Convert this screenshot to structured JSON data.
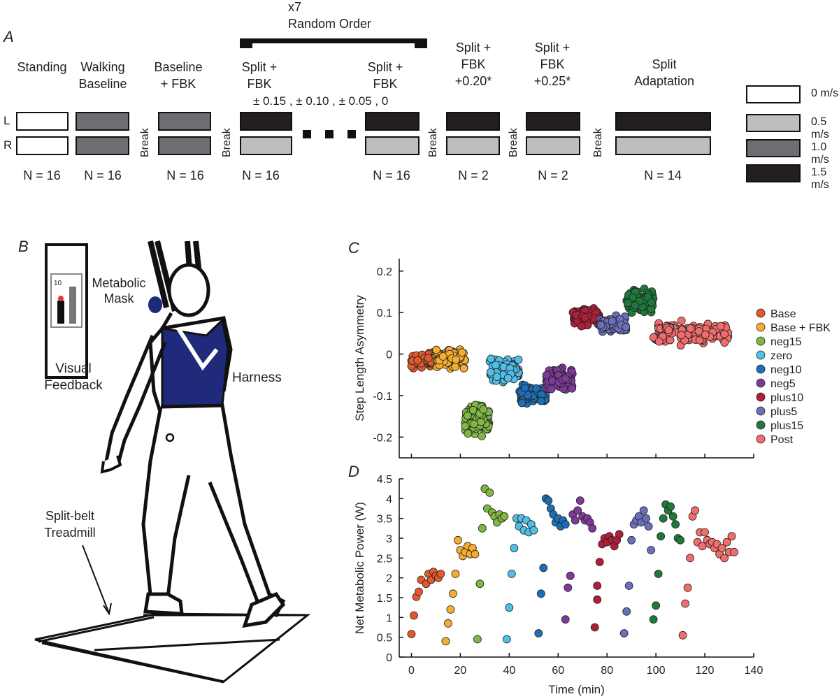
{
  "panel_a": {
    "letter": "A",
    "bracket": {
      "line1": "x7",
      "line2": "Random Order"
    },
    "columns": [
      {
        "label": "Standing",
        "n": "N = 16",
        "left": "0 m/s",
        "right": "0 m/s"
      },
      {
        "label": "Walking\nBaseline",
        "n": "N = 16",
        "left": "1.0 m/s",
        "right": "1.0 m/s"
      },
      {
        "label": "Baseline\n+ FBK",
        "n": "N = 16",
        "left": "1.0 m/s",
        "right": "1.0 m/s"
      },
      {
        "label": "Split +\nFBK",
        "n": "N = 16",
        "left": "1.5 m/s",
        "right": "0.5 m/s"
      },
      {
        "label": "Split +\nFBK",
        "n": "N = 16",
        "left": "1.5 m/s",
        "right": "0.5 m/s"
      },
      {
        "label": "Split +\nFBK\n+0.20*",
        "n": "N = 2",
        "left": "1.5 m/s",
        "right": "0.5 m/s"
      },
      {
        "label": "Split +\nFBK\n+0.25*",
        "n": "N = 2",
        "left": "1.5 m/s",
        "right": "0.5 m/s"
      },
      {
        "label": "Split\nAdaptation",
        "n": "N = 14",
        "left": "1.5 m/s",
        "right": "0.5 m/s"
      }
    ],
    "split_targets": "± 0.15 , ± 0.10 , ± 0.05 , 0",
    "break_label": "Break",
    "row_left": "L",
    "row_right": "R",
    "legend": [
      {
        "label": "0 m/s",
        "color": "#ffffff"
      },
      {
        "label": "0.5 m/s",
        "color": "#bcbec0"
      },
      {
        "label": "1.0 m/s",
        "color": "#6d6e71"
      },
      {
        "label": "1.5 m/s",
        "color": "#231f20"
      }
    ]
  },
  "panel_b": {
    "letter": "B",
    "labels": {
      "feedback_value": "10",
      "mask": "Metabolic\nMask",
      "visual": "Visual\nFeedback",
      "harness": "Harness",
      "treadmill": "Split-belt\nTreadmill"
    }
  },
  "chart_data": [
    {
      "panel": "C",
      "type": "scatter",
      "ylabel": "Step Length Asymmetry",
      "xlabel": "",
      "ylim": [
        -0.25,
        0.23
      ],
      "xlim": [
        -5,
        140
      ],
      "yticks": [
        -0.2,
        -0.1,
        0,
        0.1,
        0.2
      ],
      "ytick_labels": [
        "-0.2",
        "-0.1",
        "0",
        "0.1",
        "0.2"
      ],
      "legend_position": "right",
      "series": [
        {
          "name": "Base",
          "color": "#e25a2c",
          "x_range": [
            0,
            10
          ],
          "y_mean": -0.015,
          "y_spread": 0.022,
          "n": 90
        },
        {
          "name": "Base + FBK",
          "color": "#f4ad2f",
          "x_range": [
            10,
            22
          ],
          "y_mean": -0.01,
          "y_spread": 0.03,
          "n": 90
        },
        {
          "name": "neg15",
          "color": "#80b741",
          "x_range": [
            22,
            32
          ],
          "y_mean": -0.16,
          "y_spread": 0.045,
          "n": 90
        },
        {
          "name": "zero",
          "color": "#4fbfe8",
          "x_range": [
            32,
            44
          ],
          "y_mean": -0.04,
          "y_spread": 0.035,
          "n": 90
        },
        {
          "name": "neg10",
          "color": "#1b6fb6",
          "x_range": [
            44,
            55
          ],
          "y_mean": -0.1,
          "y_spread": 0.03,
          "n": 90
        },
        {
          "name": "neg5",
          "color": "#7e3a9a",
          "x_range": [
            55,
            66
          ],
          "y_mean": -0.06,
          "y_spread": 0.035,
          "n": 90
        },
        {
          "name": "plus10",
          "color": "#b01f3a",
          "x_range": [
            66,
            77
          ],
          "y_mean": 0.09,
          "y_spread": 0.03,
          "n": 90
        },
        {
          "name": "plus5",
          "color": "#6a6fba",
          "x_range": [
            77,
            88
          ],
          "y_mean": 0.07,
          "y_spread": 0.025,
          "n": 90
        },
        {
          "name": "plus15",
          "color": "#1e7a3a",
          "x_range": [
            88,
            99
          ],
          "y_mean": 0.13,
          "y_spread": 0.035,
          "n": 90
        },
        {
          "name": "Post",
          "color": "#f26c6c",
          "x_range": [
            99,
            130
          ],
          "y_mean": 0.05,
          "y_spread": 0.035,
          "n": 150
        }
      ]
    },
    {
      "panel": "D",
      "type": "scatter",
      "ylabel": "Net Metabolic Power (W)",
      "xlabel": "Time (min)",
      "ylim": [
        0,
        4.5
      ],
      "xlim": [
        -5,
        140
      ],
      "xticks": [
        0,
        20,
        40,
        60,
        80,
        100,
        120,
        140
      ],
      "xtick_labels": [
        "0",
        "20",
        "40",
        "60",
        "80",
        "100",
        "120",
        "140"
      ],
      "yticks": [
        0,
        0.5,
        1,
        1.5,
        2,
        2.5,
        3,
        3.5,
        4,
        4.5
      ],
      "ytick_labels": [
        "0",
        "0.5",
        "1",
        "1.5",
        "2",
        "2.5",
        "3",
        "3.5",
        "4",
        "4.5"
      ],
      "series": [
        {
          "name": "Base",
          "color": "#e25a2c",
          "points": [
            [
              0,
              0.58
            ],
            [
              1,
              1.05
            ],
            [
              2,
              1.52
            ],
            [
              3,
              1.65
            ],
            [
              4,
              1.95
            ],
            [
              6,
              1.85
            ],
            [
              7,
              2.1
            ],
            [
              8,
              1.95
            ],
            [
              9,
              2.15
            ],
            [
              10,
              2.05
            ],
            [
              11,
              2.0
            ],
            [
              12,
              2.1
            ]
          ]
        },
        {
          "name": "Base + FBK",
          "color": "#f4ad2f",
          "points": [
            [
              14,
              0.4
            ],
            [
              15,
              0.85
            ],
            [
              16,
              1.2
            ],
            [
              17,
              1.6
            ],
            [
              18,
              2.1
            ],
            [
              19,
              2.95
            ],
            [
              20,
              2.7
            ],
            [
              21,
              2.55
            ],
            [
              22,
              2.65
            ],
            [
              23,
              2.8
            ],
            [
              24,
              2.6
            ],
            [
              25,
              2.75
            ],
            [
              26,
              2.6
            ]
          ]
        },
        {
          "name": "neg15",
          "color": "#80b741",
          "points": [
            [
              27,
              0.45
            ],
            [
              28,
              1.85
            ],
            [
              29,
              3.25
            ],
            [
              30,
              4.25
            ],
            [
              31,
              3.75
            ],
            [
              32,
              4.15
            ],
            [
              33,
              3.65
            ],
            [
              34,
              3.55
            ],
            [
              35,
              3.4
            ],
            [
              36,
              3.6
            ],
            [
              37,
              3.5
            ],
            [
              38,
              3.55
            ]
          ]
        },
        {
          "name": "zero",
          "color": "#4fbfe8",
          "points": [
            [
              39,
              0.45
            ],
            [
              40,
              1.25
            ],
            [
              41,
              2.1
            ],
            [
              42,
              2.75
            ],
            [
              43,
              3.5
            ],
            [
              44,
              3.3
            ],
            [
              45,
              3.5
            ],
            [
              46,
              3.2
            ],
            [
              47,
              3.45
            ],
            [
              48,
              3.15
            ],
            [
              49,
              3.35
            ],
            [
              50,
              3.2
            ]
          ]
        },
        {
          "name": "neg10",
          "color": "#1b6fb6",
          "points": [
            [
              52,
              0.6
            ],
            [
              53,
              1.6
            ],
            [
              54,
              2.25
            ],
            [
              55,
              4.0
            ],
            [
              56,
              3.95
            ],
            [
              57,
              3.75
            ],
            [
              58,
              3.6
            ],
            [
              59,
              3.4
            ],
            [
              60,
              3.5
            ],
            [
              61,
              3.3
            ],
            [
              62,
              3.45
            ],
            [
              63,
              3.35
            ]
          ]
        },
        {
          "name": "neg5",
          "color": "#7e3a9a",
          "points": [
            [
              63,
              0.95
            ],
            [
              64,
              1.75
            ],
            [
              65,
              2.05
            ],
            [
              66,
              3.6
            ],
            [
              67,
              3.45
            ],
            [
              68,
              3.7
            ],
            [
              69,
              3.95
            ],
            [
              70,
              3.55
            ],
            [
              71,
              3.45
            ],
            [
              72,
              3.5
            ],
            [
              73,
              3.4
            ],
            [
              74,
              3.25
            ]
          ]
        },
        {
          "name": "plus10",
          "color": "#b01f3a",
          "points": [
            [
              75,
              0.75
            ],
            [
              76,
              1.45
            ],
            [
              76,
              1.8
            ],
            [
              77,
              2.4
            ],
            [
              78,
              2.85
            ],
            [
              79,
              3.0
            ],
            [
              80,
              2.9
            ],
            [
              81,
              3.05
            ],
            [
              82,
              2.95
            ],
            [
              83,
              2.8
            ],
            [
              84,
              2.95
            ],
            [
              85,
              3.1
            ]
          ]
        },
        {
          "name": "plus5",
          "color": "#6a6fba",
          "points": [
            [
              87,
              0.6
            ],
            [
              88,
              1.15
            ],
            [
              89,
              1.8
            ],
            [
              90,
              2.95
            ],
            [
              91,
              3.35
            ],
            [
              92,
              3.45
            ],
            [
              93,
              3.55
            ],
            [
              94,
              3.4
            ],
            [
              95,
              3.7
            ],
            [
              96,
              3.5
            ],
            [
              97,
              3.3
            ],
            [
              98,
              2.7
            ]
          ]
        },
        {
          "name": "plus15",
          "color": "#1e7a3a",
          "points": [
            [
              99,
              0.95
            ],
            [
              100,
              1.3
            ],
            [
              101,
              2.1
            ],
            [
              102,
              3.05
            ],
            [
              103,
              3.5
            ],
            [
              104,
              3.85
            ],
            [
              105,
              3.7
            ],
            [
              106,
              3.8
            ],
            [
              107,
              3.55
            ],
            [
              108,
              3.35
            ],
            [
              109,
              3.0
            ],
            [
              110,
              2.95
            ]
          ]
        },
        {
          "name": "Post",
          "color": "#f26c6c",
          "points": [
            [
              111,
              0.55
            ],
            [
              112,
              1.35
            ],
            [
              113,
              1.75
            ],
            [
              114,
              2.5
            ],
            [
              115,
              3.55
            ],
            [
              116,
              3.7
            ],
            [
              117,
              2.9
            ],
            [
              118,
              3.15
            ],
            [
              119,
              2.8
            ],
            [
              120,
              3.15
            ],
            [
              121,
              2.95
            ],
            [
              122,
              2.85
            ],
            [
              123,
              2.9
            ],
            [
              124,
              2.75
            ],
            [
              125,
              2.85
            ],
            [
              126,
              2.6
            ],
            [
              127,
              2.75
            ],
            [
              128,
              2.5
            ],
            [
              129,
              2.9
            ],
            [
              130,
              2.65
            ],
            [
              131,
              3.05
            ],
            [
              132,
              2.65
            ]
          ]
        }
      ]
    }
  ]
}
